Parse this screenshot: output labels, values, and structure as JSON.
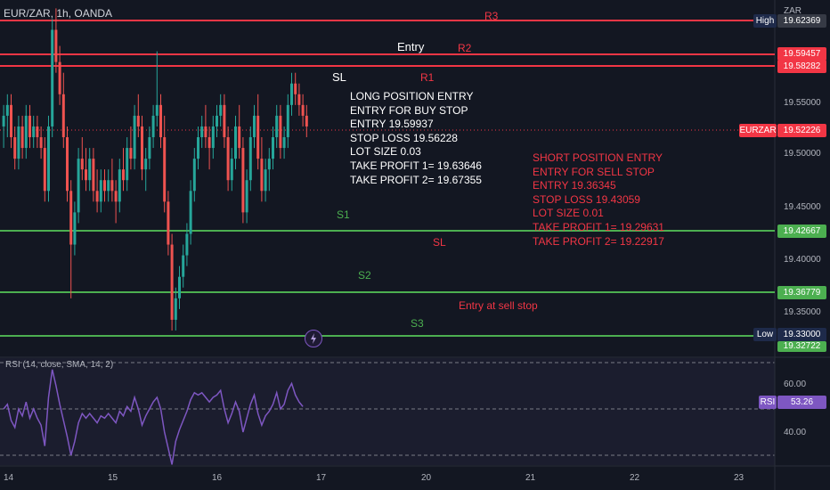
{
  "header": {
    "symbol": "EUR/ZAR, 1h, OANDA",
    "currency": "ZAR"
  },
  "price_axis": {
    "ticks": [
      "19.55000",
      "19.50000",
      "19.45000",
      "19.40000",
      "19.35000"
    ]
  },
  "time_axis": {
    "ticks": [
      "14",
      "15",
      "16",
      "17",
      "20",
      "21",
      "22",
      "23"
    ]
  },
  "levels": {
    "r3": {
      "label": "R3",
      "price": "19.62369",
      "tag": "High"
    },
    "r2": {
      "label": "R2",
      "price": "19.59457"
    },
    "entry": {
      "label": "Entry"
    },
    "r1": {
      "label": "R1",
      "price": "19.58282"
    },
    "sl": {
      "label": "SL"
    },
    "current": {
      "price": "19.52226",
      "tag": "EURZAR"
    },
    "s1": {
      "label": "S1",
      "price": "19.42667"
    },
    "sl2": {
      "label": "SL"
    },
    "s2": {
      "label": "S2",
      "price": "19.36779"
    },
    "entry_sell": {
      "label": "Entry at sell stop"
    },
    "s3": {
      "label": "S3",
      "price": "19.33000",
      "tag": "Low"
    },
    "bottom": {
      "price": "19.32722"
    }
  },
  "long_note": {
    "lines": [
      "LONG POSITION ENTRY",
      "ENTRY FOR BUY STOP",
      "ENTRY 19.59937",
      "STOP LOSS 19.56228",
      "LOT SIZE 0.03",
      "TAKE PROFIT 1=  19.63646",
      "TAKE PROFIT 2= 19.67355"
    ]
  },
  "short_note": {
    "lines": [
      "SHORT POSITION ENTRY",
      "ENTRY FOR SELL STOP",
      "ENTRY  19.36345",
      "STOP LOSS 19.43059",
      "LOT SIZE 0.01",
      "TAKE PROFIT 1=  19.29631",
      "TAKE PROFIT 2=  19.22917"
    ]
  },
  "rsi": {
    "title": "RSI (14, close, SMA, 14, 2)",
    "tag": "RSI",
    "value": "53.26",
    "ticks": [
      "60.00",
      "40.00"
    ]
  },
  "colors": {
    "background": "#131722",
    "resistance": "#f23645",
    "support": "#4caf50",
    "up": "#26a69a",
    "down": "#ef5350",
    "rsi": "#7e57c2"
  },
  "chart_data": {
    "type": "candlestick",
    "title": "EUR/ZAR, 1h, OANDA",
    "xlabel": "",
    "ylabel": "",
    "ylim": [
      19.31,
      19.64
    ],
    "x_ticks": [
      "14",
      "15",
      "16",
      "17",
      "20",
      "21",
      "22",
      "23"
    ],
    "candles": [
      [
        19.525,
        19.545,
        19.505,
        19.535
      ],
      [
        19.535,
        19.555,
        19.515,
        19.545
      ],
      [
        19.545,
        19.555,
        19.505,
        19.515
      ],
      [
        19.515,
        19.525,
        19.485,
        19.495
      ],
      [
        19.495,
        19.535,
        19.485,
        19.525
      ],
      [
        19.525,
        19.535,
        19.495,
        19.505
      ],
      [
        19.505,
        19.545,
        19.495,
        19.535
      ],
      [
        19.535,
        19.545,
        19.505,
        19.515
      ],
      [
        19.515,
        19.535,
        19.505,
        19.525
      ],
      [
        19.525,
        19.535,
        19.505,
        19.515
      ],
      [
        19.515,
        19.525,
        19.495,
        19.505
      ],
      [
        19.505,
        19.515,
        19.455,
        19.465
      ],
      [
        19.465,
        19.535,
        19.455,
        19.525
      ],
      [
        19.525,
        19.625,
        19.515,
        19.615
      ],
      [
        19.615,
        19.635,
        19.575,
        19.585
      ],
      [
        19.585,
        19.6,
        19.545,
        19.555
      ],
      [
        19.555,
        19.575,
        19.505,
        19.515
      ],
      [
        19.515,
        19.525,
        19.455,
        19.465
      ],
      [
        19.465,
        19.475,
        19.365,
        19.415
      ],
      [
        19.415,
        19.455,
        19.405,
        19.445
      ],
      [
        19.445,
        19.505,
        19.435,
        19.495
      ],
      [
        19.495,
        19.515,
        19.475,
        19.485
      ],
      [
        19.485,
        19.505,
        19.465,
        19.475
      ],
      [
        19.475,
        19.505,
        19.465,
        19.495
      ],
      [
        19.495,
        19.505,
        19.455,
        19.465
      ],
      [
        19.465,
        19.485,
        19.445,
        19.455
      ],
      [
        19.455,
        19.485,
        19.445,
        19.475
      ],
      [
        19.475,
        19.485,
        19.455,
        19.465
      ],
      [
        19.465,
        19.485,
        19.455,
        19.475
      ],
      [
        19.475,
        19.495,
        19.455,
        19.465
      ],
      [
        19.465,
        19.475,
        19.435,
        19.455
      ],
      [
        19.455,
        19.495,
        19.445,
        19.485
      ],
      [
        19.485,
        19.505,
        19.465,
        19.475
      ],
      [
        19.475,
        19.515,
        19.465,
        19.505
      ],
      [
        19.505,
        19.525,
        19.485,
        19.495
      ],
      [
        19.495,
        19.545,
        19.485,
        19.535
      ],
      [
        19.535,
        19.555,
        19.515,
        19.525
      ],
      [
        19.525,
        19.535,
        19.475,
        19.485
      ],
      [
        19.485,
        19.505,
        19.465,
        19.495
      ],
      [
        19.495,
        19.525,
        19.485,
        19.515
      ],
      [
        19.515,
        19.545,
        19.505,
        19.535
      ],
      [
        19.535,
        19.595,
        19.525,
        19.545
      ],
      [
        19.545,
        19.555,
        19.505,
        19.515
      ],
      [
        19.515,
        19.535,
        19.445,
        19.455
      ],
      [
        19.455,
        19.465,
        19.405,
        19.415
      ],
      [
        19.415,
        19.425,
        19.335,
        19.345
      ],
      [
        19.345,
        19.375,
        19.335,
        19.365
      ],
      [
        19.365,
        19.395,
        19.355,
        19.385
      ],
      [
        19.385,
        19.415,
        19.375,
        19.405
      ],
      [
        19.405,
        19.435,
        19.395,
        19.425
      ],
      [
        19.425,
        19.475,
        19.415,
        19.465
      ],
      [
        19.465,
        19.505,
        19.455,
        19.495
      ],
      [
        19.495,
        19.525,
        19.485,
        19.515
      ],
      [
        19.515,
        19.535,
        19.505,
        19.525
      ],
      [
        19.525,
        19.545,
        19.505,
        19.515
      ],
      [
        19.515,
        19.525,
        19.485,
        19.505
      ],
      [
        19.505,
        19.535,
        19.495,
        19.525
      ],
      [
        19.525,
        19.545,
        19.515,
        19.535
      ],
      [
        19.535,
        19.555,
        19.525,
        19.545
      ],
      [
        19.545,
        19.555,
        19.505,
        19.515
      ],
      [
        19.515,
        19.525,
        19.465,
        19.475
      ],
      [
        19.475,
        19.505,
        19.465,
        19.495
      ],
      [
        19.495,
        19.535,
        19.485,
        19.525
      ],
      [
        19.525,
        19.545,
        19.495,
        19.505
      ],
      [
        19.505,
        19.515,
        19.435,
        19.445
      ],
      [
        19.445,
        19.485,
        19.435,
        19.475
      ],
      [
        19.475,
        19.525,
        19.465,
        19.515
      ],
      [
        19.515,
        19.545,
        19.505,
        19.535
      ],
      [
        19.535,
        19.555,
        19.485,
        19.495
      ],
      [
        19.495,
        19.515,
        19.455,
        19.465
      ],
      [
        19.465,
        19.495,
        19.455,
        19.485
      ],
      [
        19.485,
        19.505,
        19.465,
        19.495
      ],
      [
        19.495,
        19.525,
        19.485,
        19.515
      ],
      [
        19.515,
        19.545,
        19.505,
        19.535
      ],
      [
        19.535,
        19.545,
        19.495,
        19.505
      ],
      [
        19.505,
        19.525,
        19.495,
        19.515
      ],
      [
        19.515,
        19.555,
        19.505,
        19.545
      ],
      [
        19.545,
        19.575,
        19.535,
        19.565
      ],
      [
        19.565,
        19.575,
        19.545,
        19.555
      ],
      [
        19.555,
        19.565,
        19.535,
        19.545
      ],
      [
        19.545,
        19.555,
        19.525,
        19.535
      ],
      [
        19.535,
        19.545,
        19.515,
        19.525
      ]
    ],
    "rsi_series": [
      50,
      52,
      45,
      42,
      50,
      47,
      53,
      46,
      50,
      46,
      43,
      34,
      55,
      67,
      60,
      52,
      45,
      38,
      30,
      36,
      44,
      48,
      46,
      48,
      46,
      44,
      47,
      46,
      48,
      46,
      44,
      49,
      47,
      51,
      49,
      55,
      50,
      43,
      47,
      50,
      53,
      55,
      50,
      40,
      33,
      26,
      36,
      41,
      45,
      49,
      54,
      57,
      56,
      57,
      55,
      53,
      55,
      56,
      58,
      50,
      44,
      48,
      53,
      49,
      40,
      46,
      52,
      56,
      48,
      43,
      47,
      49,
      52,
      57,
      50,
      52,
      58,
      61,
      56,
      53,
      51
    ]
  }
}
